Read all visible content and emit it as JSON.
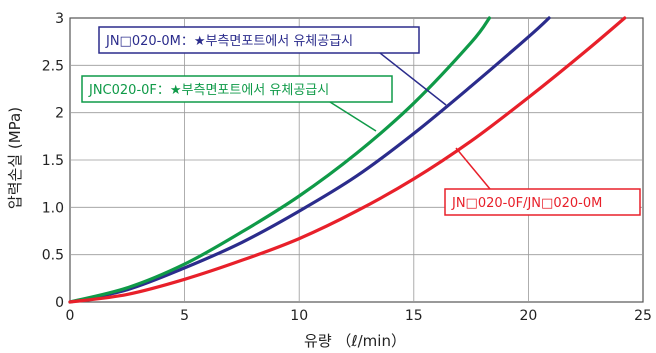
{
  "chart_data": {
    "type": "line",
    "xlabel": "유량 （ℓ/min）",
    "ylabel": "압력손실 (MPa)",
    "xlim": [
      0,
      25
    ],
    "ylim": [
      0,
      3
    ],
    "xticks": [
      0,
      5,
      10,
      15,
      20,
      25
    ],
    "yticks": [
      0,
      0.5,
      1.0,
      1.5,
      2,
      2.5,
      3
    ],
    "ytick_labels": [
      "0",
      "0.5",
      "1.0",
      "1.5",
      "2",
      "2.5",
      "3"
    ],
    "grid": true,
    "series": [
      {
        "name": "JN□020-0M：★부측면포트에서 유체공급시",
        "color": "#2b2c8c",
        "x": [
          0,
          2.5,
          5,
          7.5,
          10,
          12.5,
          15,
          17.5,
          20,
          20.9
        ],
        "y": [
          0,
          0.13,
          0.36,
          0.63,
          0.96,
          1.33,
          1.78,
          2.28,
          2.8,
          3.0
        ]
      },
      {
        "name": "JNC020-0F：★부측면포트에서 유체공급시",
        "color": "#0f9a48",
        "x": [
          0,
          2.5,
          5,
          7.5,
          10,
          12.5,
          15,
          17.5,
          18.3
        ],
        "y": [
          0,
          0.15,
          0.4,
          0.74,
          1.12,
          1.57,
          2.1,
          2.74,
          3.0
        ]
      },
      {
        "name": "JN□020-0F/JN□020-0M",
        "color": "#e8202a",
        "x": [
          0,
          2.5,
          5,
          7.5,
          10,
          12.5,
          15,
          17.5,
          20,
          22.5,
          24.2
        ],
        "y": [
          0,
          0.08,
          0.24,
          0.44,
          0.67,
          0.96,
          1.3,
          1.7,
          2.16,
          2.65,
          3.0
        ]
      }
    ]
  },
  "callouts": [
    {
      "text": "JN□020-0M：★부측면포트에서 유체공급시",
      "color": "#2b2c8c"
    },
    {
      "text": "JNC020-0F：★부측면포트에서 유체공급시",
      "color": "#0f9a48"
    },
    {
      "text": "JN□020-0F/JN□020-0M",
      "color": "#e8202a"
    }
  ]
}
